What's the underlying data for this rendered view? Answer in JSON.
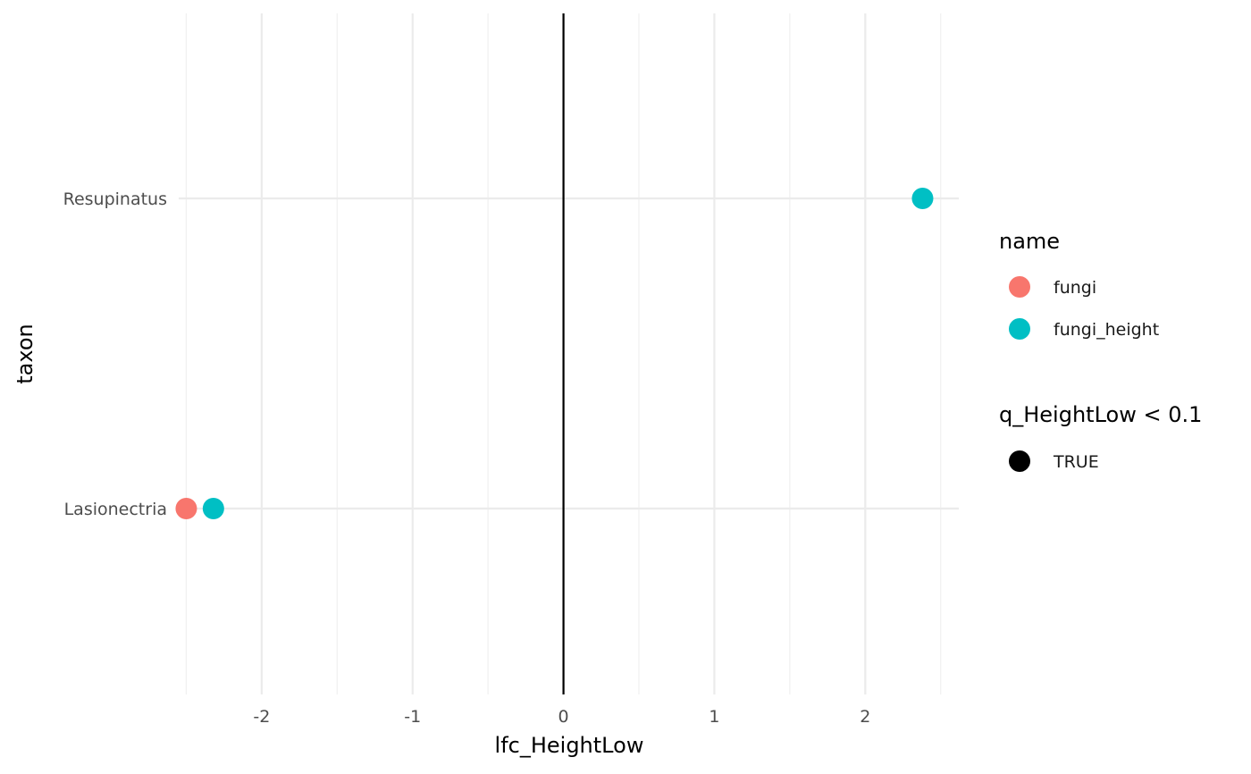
{
  "chart_data": {
    "type": "scatter",
    "xlabel": "lfc_HeightLow",
    "ylabel": "taxon",
    "xlim": [
      -2.55,
      2.62
    ],
    "x_ticks": [
      -2,
      -1,
      0,
      1,
      2
    ],
    "x_minor_ticks": [
      -2.5,
      -1.5,
      -0.5,
      0.5,
      1.5,
      2.5
    ],
    "x_tick_labels": [
      "-2",
      "-1",
      "0",
      "1",
      "2"
    ],
    "categories": [
      "Lasionectria",
      "Resupinatus"
    ],
    "reference_line_x": 0,
    "grid": true,
    "legend_placement": "right",
    "series": [
      {
        "name": "fungi",
        "color": "#F8766D",
        "points": [
          {
            "taxon": "Lasionectria",
            "x": -2.5
          }
        ]
      },
      {
        "name": "fungi_height",
        "color": "#00BFC4",
        "points": [
          {
            "taxon": "Lasionectria",
            "x": -2.32
          },
          {
            "taxon": "Resupinatus",
            "x": 2.38
          }
        ]
      }
    ],
    "legends": [
      {
        "title": "name",
        "entries": [
          {
            "label": "fungi",
            "color": "#F8766D"
          },
          {
            "label": "fungi_height",
            "color": "#00BFC4"
          }
        ]
      },
      {
        "title": "q_HeightLow < 0.1",
        "entries": [
          {
            "label": "TRUE",
            "color": "#000000"
          }
        ]
      }
    ]
  }
}
